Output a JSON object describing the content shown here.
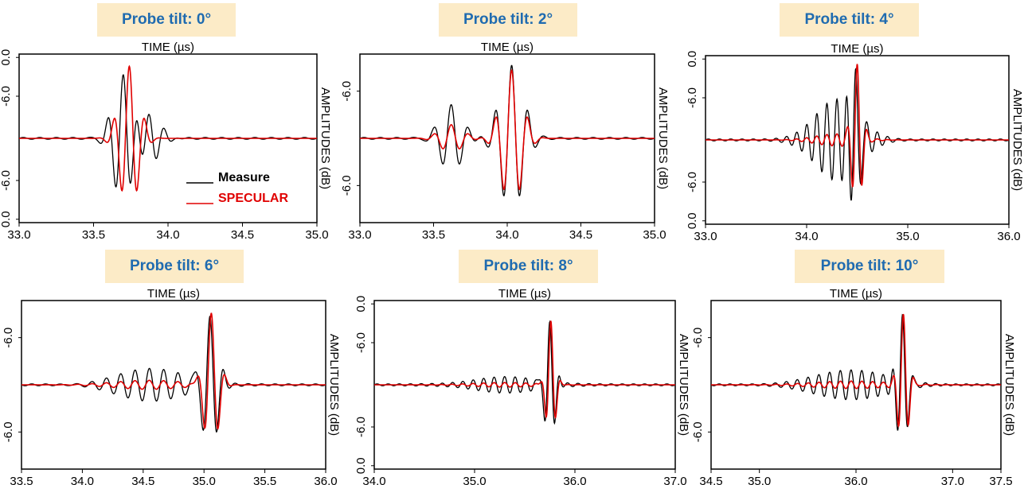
{
  "colors": {
    "measure": "#000000",
    "specular": "#e00000",
    "title_bg": "#fcebc7",
    "title_text": "#1f6bb0"
  },
  "chart_data": [
    {
      "type": "line",
      "title": "Probe tilt: 0°",
      "top_label": "TIME (µs)",
      "right_label": "AMPLITUDES (dB)",
      "xlim": [
        33.0,
        35.0
      ],
      "xticks": [
        "33.0",
        "33.5",
        "34.0",
        "34.5",
        "35.0"
      ],
      "yticks": [
        "0.0",
        "-6.0",
        "-6.0",
        "0.0"
      ],
      "legend": {
        "position": "bottom-right",
        "entries": [
          "Measure",
          "SPECULAR"
        ]
      },
      "series": [
        {
          "name": "Measure",
          "color": "#000000",
          "signal": {
            "segments": [
              {
                "c": 33.7,
                "w": 0.095,
                "amp": 0.85,
                "f": 9.5
              },
              {
                "c": 33.87,
                "w": 0.11,
                "amp": 0.35,
                "f": 9.5
              }
            ]
          }
        },
        {
          "name": "SPECULAR",
          "color": "#e00000",
          "signal": {
            "segments": [
              {
                "c": 33.74,
                "w": 0.09,
                "amp": 0.95,
                "f": 9.5
              }
            ]
          }
        }
      ]
    },
    {
      "type": "line",
      "title": "Probe tilt: 2°",
      "top_label": "TIME (µs)",
      "right_label": "AMPLITUDES (dB)",
      "xlim": [
        33.0,
        35.0
      ],
      "xticks": [
        "33.0",
        "33.5",
        "34.0",
        "34.5",
        "35.0"
      ],
      "yticks": [
        "-6.0",
        "-6.0"
      ],
      "series": [
        {
          "name": "Measure",
          "color": "#000000",
          "signal": {
            "segments": [
              {
                "c": 33.62,
                "w": 0.11,
                "amp": 0.45,
                "f": 8.5
              },
              {
                "c": 34.03,
                "w": 0.11,
                "amp": 0.95,
                "f": 9.0
              }
            ]
          }
        },
        {
          "name": "SPECULAR",
          "color": "#e00000",
          "signal": {
            "segments": [
              {
                "c": 33.62,
                "w": 0.11,
                "amp": 0.18,
                "f": 8.5
              },
              {
                "c": 34.03,
                "w": 0.1,
                "amp": 0.9,
                "f": 9.0
              }
            ]
          }
        }
      ]
    },
    {
      "type": "line",
      "title": "Probe tilt: 4°",
      "top_label": "TIME (µs)",
      "right_label": "AMPLITUDES (dB)",
      "xlim": [
        33.0,
        36.0
      ],
      "xticks": [
        "33.0",
        "34.0",
        "35.0",
        "36.0"
      ],
      "yticks": [
        "0.0",
        "-6.0",
        "-6.0",
        "0.0"
      ],
      "series": [
        {
          "name": "Measure",
          "color": "#000000",
          "signal": {
            "segments": [
              {
                "c": 34.3,
                "w": 0.3,
                "amp": 0.55,
                "f": 10.0
              },
              {
                "c": 34.48,
                "w": 0.07,
                "amp": 0.75,
                "f": 10.0
              }
            ]
          }
        },
        {
          "name": "SPECULAR",
          "color": "#e00000",
          "signal": {
            "segments": [
              {
                "c": 34.5,
                "w": 0.065,
                "amp": 0.95,
                "f": 10.0
              },
              {
                "c": 34.3,
                "w": 0.3,
                "amp": 0.08,
                "f": 10.0
              }
            ]
          }
        }
      ]
    },
    {
      "type": "line",
      "title": "Probe tilt: 6°",
      "top_label": "TIME (µs)",
      "right_label": "AMPLITUDES (dB)",
      "xlim": [
        33.5,
        36.0
      ],
      "xticks": [
        "33.5",
        "34.0",
        "34.5",
        "35.0",
        "35.5",
        "36.0"
      ],
      "yticks": [
        "-6.0",
        "-6.0"
      ],
      "series": [
        {
          "name": "Measure",
          "color": "#000000",
          "signal": {
            "segments": [
              {
                "c": 34.55,
                "w": 0.4,
                "amp": 0.22,
                "f": 8.5
              },
              {
                "c": 35.05,
                "w": 0.09,
                "amp": 0.9,
                "f": 8.5
              }
            ]
          }
        },
        {
          "name": "SPECULAR",
          "color": "#e00000",
          "signal": {
            "segments": [
              {
                "c": 35.06,
                "w": 0.08,
                "amp": 0.95,
                "f": 8.5
              },
              {
                "c": 34.55,
                "w": 0.4,
                "amp": 0.06,
                "f": 8.5
              }
            ]
          }
        }
      ]
    },
    {
      "type": "line",
      "title": "Probe tilt: 8°",
      "top_label": "TIME (µs)",
      "right_label": "AMPLITUDES (dB)",
      "xlim": [
        34.0,
        37.0
      ],
      "xticks": [
        "34.0",
        "35.0",
        "36.0",
        "37.0"
      ],
      "yticks": [
        "0.0",
        "-6.0",
        "-6.0",
        "0.0"
      ],
      "series": [
        {
          "name": "Measure",
          "color": "#000000",
          "signal": {
            "segments": [
              {
                "c": 35.3,
                "w": 0.45,
                "amp": 0.12,
                "f": 9.5
              },
              {
                "c": 35.75,
                "w": 0.07,
                "amp": 0.85,
                "f": 9.5
              }
            ]
          }
        },
        {
          "name": "SPECULAR",
          "color": "#e00000",
          "signal": {
            "segments": [
              {
                "c": 35.76,
                "w": 0.06,
                "amp": 0.85,
                "f": 9.5
              },
              {
                "c": 35.3,
                "w": 0.45,
                "amp": 0.03,
                "f": 9.5
              }
            ]
          }
        }
      ]
    },
    {
      "type": "line",
      "title": "Probe tilt: 10°",
      "top_label": "TIME (µs)",
      "right_label": "AMPLITUDES (dB)",
      "xlim": [
        34.5,
        37.5
      ],
      "xticks": [
        "34.5",
        "35.0",
        "36.0",
        "37.0",
        "37.5"
      ],
      "yticks": [
        "-6.0",
        "-6.0"
      ],
      "series": [
        {
          "name": "Measure",
          "color": "#000000",
          "signal": {
            "segments": [
              {
                "c": 35.95,
                "w": 0.55,
                "amp": 0.2,
                "f": 9.0
              },
              {
                "c": 36.48,
                "w": 0.075,
                "amp": 0.9,
                "f": 9.0
              }
            ]
          }
        },
        {
          "name": "SPECULAR",
          "color": "#e00000",
          "signal": {
            "segments": [
              {
                "c": 36.49,
                "w": 0.07,
                "amp": 0.92,
                "f": 9.0
              },
              {
                "c": 35.95,
                "w": 0.55,
                "amp": 0.05,
                "f": 9.0
              }
            ]
          }
        }
      ]
    }
  ]
}
